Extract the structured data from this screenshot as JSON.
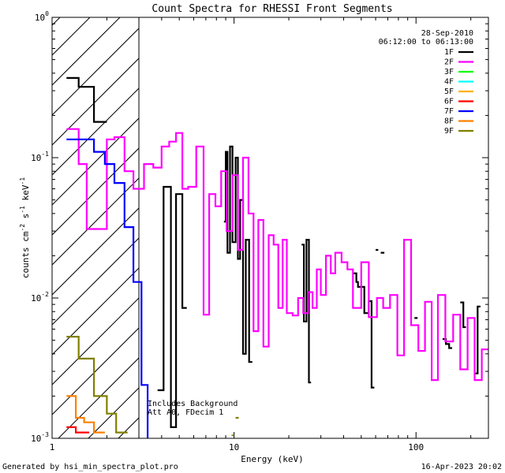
{
  "chart_data": {
    "type": "line",
    "title": "Count Spectra for RHESSI Front Segments",
    "xlabel": "Energy (keV)",
    "ylabel_main": "counts cm",
    "ylabel_sup1": "-2",
    "ylabel_mid": " s",
    "ylabel_sup2": "-1",
    "ylabel_mid2": " keV",
    "ylabel_sup3": "-1",
    "x_scale": "log",
    "y_scale": "log",
    "xlim": [
      1,
      250
    ],
    "ylim": [
      0.001,
      1
    ],
    "x_ticks": [
      {
        "value": 1,
        "label": "1"
      },
      {
        "value": 10,
        "label": "10"
      },
      {
        "value": 100,
        "label": "100"
      }
    ],
    "y_ticks": [
      {
        "value": 1,
        "base": "10",
        "exp": "0"
      },
      {
        "value": 0.1,
        "base": "10",
        "exp": "-1"
      },
      {
        "value": 0.01,
        "base": "10",
        "exp": "-2"
      },
      {
        "value": 0.001,
        "base": "10",
        "exp": "-3"
      }
    ],
    "legend_placement": "top-right",
    "legend_date": "28-Sep-2010",
    "legend_time": "06:12:00 to 06:13:00",
    "annotations": [
      "Includes Background",
      "Att A0, FDecim 1"
    ],
    "hatched_region_upper_energy": 3,
    "series": [
      {
        "name": "1F",
        "color": "#000000",
        "steps": [
          [
            1.2,
            1.4,
            0.37
          ],
          [
            1.4,
            1.7,
            0.32
          ],
          [
            1.7,
            2.0,
            0.18
          ],
          [
            3.8,
            4.1,
            0.0022
          ],
          [
            4.1,
            4.5,
            0.062
          ],
          [
            4.5,
            4.8,
            0.0012
          ],
          [
            4.8,
            5.2,
            0.055
          ],
          [
            5.2,
            5.5,
            0.0085
          ],
          [
            8.8,
            9.0,
            0.035
          ],
          [
            9.0,
            9.2,
            0.11
          ],
          [
            9.2,
            9.5,
            0.021
          ],
          [
            9.5,
            9.8,
            0.12
          ],
          [
            9.8,
            10.2,
            0.025
          ],
          [
            10.2,
            10.5,
            0.1
          ],
          [
            10.5,
            10.8,
            0.019
          ],
          [
            10.8,
            11.2,
            0.05
          ],
          [
            11.2,
            11.6,
            0.004
          ],
          [
            11.6,
            12.1,
            0.026
          ],
          [
            12.1,
            12.6,
            0.0035
          ],
          [
            23.5,
            24.2,
            0.024
          ],
          [
            24.2,
            25.0,
            0.0068
          ],
          [
            25.0,
            25.8,
            0.026
          ],
          [
            25.8,
            26.5,
            0.0025
          ],
          [
            45,
            47,
            0.015
          ],
          [
            47,
            48,
            0.013
          ],
          [
            48,
            52,
            0.012
          ],
          [
            52,
            55,
            0.0078
          ],
          [
            55,
            57,
            0.0095
          ],
          [
            57,
            59,
            0.0023
          ],
          [
            60,
            62,
            0.022
          ],
          [
            64,
            67,
            0.021
          ],
          [
            98,
            102,
            0.0072
          ],
          [
            140,
            146,
            0.0051
          ],
          [
            146,
            152,
            0.0047
          ],
          [
            152,
            158,
            0.0044
          ],
          [
            175,
            182,
            0.0093
          ],
          [
            182,
            188,
            0.0062
          ],
          [
            210,
            218,
            0.0029
          ],
          [
            218,
            226,
            0.0087
          ]
        ]
      },
      {
        "name": "2F",
        "color": "#ff00ff",
        "steps": [
          [
            1.2,
            1.4,
            0.16
          ],
          [
            1.4,
            1.55,
            0.09
          ],
          [
            1.55,
            2.0,
            0.031
          ],
          [
            2.0,
            2.2,
            0.135
          ],
          [
            2.2,
            2.5,
            0.14
          ],
          [
            2.5,
            2.8,
            0.08
          ],
          [
            2.8,
            3.2,
            0.06
          ],
          [
            3.2,
            3.6,
            0.09
          ],
          [
            3.6,
            4.0,
            0.085
          ],
          [
            4.0,
            4.4,
            0.12
          ],
          [
            4.4,
            4.8,
            0.13
          ],
          [
            4.8,
            5.2,
            0.15
          ],
          [
            5.2,
            5.6,
            0.06
          ],
          [
            5.6,
            6.2,
            0.062
          ],
          [
            6.2,
            6.8,
            0.12
          ],
          [
            6.8,
            7.3,
            0.0076
          ],
          [
            7.3,
            7.9,
            0.055
          ],
          [
            7.9,
            8.5,
            0.045
          ],
          [
            8.5,
            9.1,
            0.08
          ],
          [
            9.1,
            9.8,
            0.03
          ],
          [
            9.8,
            10.5,
            0.075
          ],
          [
            10.5,
            11.2,
            0.022
          ],
          [
            11.2,
            12.0,
            0.1
          ],
          [
            12.0,
            12.8,
            0.04
          ],
          [
            12.8,
            13.6,
            0.0058
          ],
          [
            13.6,
            14.5,
            0.036
          ],
          [
            14.5,
            15.5,
            0.0045
          ],
          [
            15.5,
            16.5,
            0.028
          ],
          [
            16.5,
            17.5,
            0.024
          ],
          [
            17.5,
            18.5,
            0.0085
          ],
          [
            18.5,
            19.5,
            0.026
          ],
          [
            19.5,
            21,
            0.0078
          ],
          [
            21,
            22.5,
            0.0075
          ],
          [
            22.5,
            24,
            0.01
          ],
          [
            24,
            25.5,
            0.0078
          ],
          [
            25.5,
            27,
            0.011
          ],
          [
            27,
            28.5,
            0.0085
          ],
          [
            28.5,
            30,
            0.016
          ],
          [
            30,
            32,
            0.0105
          ],
          [
            32,
            34,
            0.02
          ],
          [
            34,
            36,
            0.015
          ],
          [
            36,
            39,
            0.021
          ],
          [
            39,
            42,
            0.018
          ],
          [
            42,
            45,
            0.016
          ],
          [
            45,
            50,
            0.0085
          ],
          [
            50,
            55,
            0.018
          ],
          [
            55,
            61,
            0.0073
          ],
          [
            61,
            66,
            0.01
          ],
          [
            66,
            72,
            0.0085
          ],
          [
            72,
            79,
            0.0105
          ],
          [
            79,
            86,
            0.0039
          ],
          [
            86,
            94,
            0.026
          ],
          [
            94,
            103,
            0.0064
          ],
          [
            103,
            112,
            0.0042
          ],
          [
            112,
            122,
            0.0094
          ],
          [
            122,
            132,
            0.0026
          ],
          [
            132,
            145,
            0.0105
          ],
          [
            145,
            160,
            0.0049
          ],
          [
            160,
            175,
            0.0076
          ],
          [
            175,
            192,
            0.0031
          ],
          [
            192,
            210,
            0.0072
          ],
          [
            210,
            230,
            0.0026
          ],
          [
            230,
            250,
            0.0043
          ]
        ]
      },
      {
        "name": "3F",
        "color": "#00ff00",
        "steps": []
      },
      {
        "name": "4F",
        "color": "#00ffff",
        "steps": []
      },
      {
        "name": "5F",
        "color": "#ffb000",
        "steps": []
      },
      {
        "name": "6F",
        "color": "#ff0000",
        "steps": [
          [
            1.2,
            1.35,
            0.0012
          ],
          [
            1.35,
            1.6,
            0.0011
          ]
        ]
      },
      {
        "name": "7F",
        "color": "#0000ff",
        "steps": [
          [
            1.2,
            1.7,
            0.135
          ],
          [
            1.7,
            1.95,
            0.11
          ],
          [
            1.95,
            2.2,
            0.09
          ],
          [
            2.2,
            2.5,
            0.066
          ],
          [
            2.5,
            2.8,
            0.032
          ],
          [
            2.8,
            3.1,
            0.013
          ],
          [
            3.1,
            3.35,
            0.0024
          ],
          [
            3.35,
            3.6,
            0.00095
          ]
        ]
      },
      {
        "name": "8F",
        "color": "#ff8000",
        "steps": [
          [
            1.2,
            1.35,
            0.002
          ],
          [
            1.35,
            1.5,
            0.0014
          ],
          [
            1.5,
            1.7,
            0.0013
          ],
          [
            1.7,
            1.95,
            0.0011
          ]
        ]
      },
      {
        "name": "9F",
        "color": "#808000",
        "steps": [
          [
            1.2,
            1.4,
            0.0053
          ],
          [
            1.4,
            1.7,
            0.0037
          ],
          [
            1.7,
            2.0,
            0.002
          ],
          [
            2.0,
            2.25,
            0.0015
          ],
          [
            2.25,
            2.6,
            0.0011
          ],
          [
            9.7,
            9.9,
            0.00105
          ],
          [
            10.2,
            10.6,
            0.0014
          ]
        ]
      }
    ]
  },
  "footer": {
    "left": "Generated by hsi_min_spectra_plot.pro",
    "right": "16-Apr-2023 20:02"
  }
}
